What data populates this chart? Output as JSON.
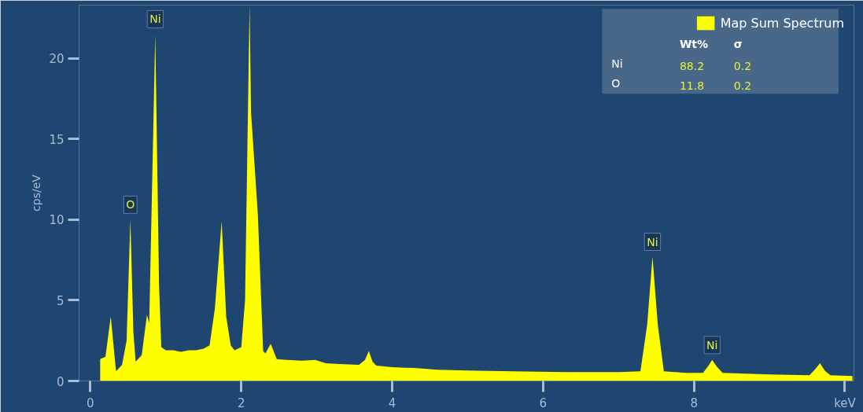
{
  "chart_data": {
    "type": "area",
    "ylabel": "cps/eV",
    "x": [
      0.13,
      0.2,
      0.27,
      0.34,
      0.42,
      0.48,
      0.53,
      0.57,
      0.6,
      0.68,
      0.75,
      0.78,
      0.86,
      0.91,
      0.94,
      1.0,
      1.1,
      1.2,
      1.3,
      1.4,
      1.5,
      1.58,
      1.65,
      1.74,
      1.8,
      1.86,
      1.91,
      2.0,
      2.05,
      2.11,
      2.13,
      2.22,
      2.29,
      2.32,
      2.39,
      2.47,
      2.6,
      2.8,
      2.98,
      3.12,
      3.3,
      3.56,
      3.64,
      3.69,
      3.74,
      3.79,
      4.0,
      4.3,
      4.6,
      5.0,
      5.6,
      6.3,
      7.0,
      7.29,
      7.38,
      7.45,
      7.52,
      7.6,
      7.9,
      8.12,
      8.2,
      8.24,
      8.3,
      8.38,
      9.0,
      9.53,
      9.6,
      9.67,
      9.74,
      9.81,
      10.1
    ],
    "series": [
      {
        "name": "Map Sum Spectrum",
        "color": "#ffff00",
        "values": [
          1.35,
          1.5,
          4.0,
          0.6,
          1.0,
          2.5,
          10.0,
          3.0,
          1.2,
          1.6,
          4.1,
          3.6,
          21.5,
          6.0,
          2.1,
          1.9,
          1.9,
          1.8,
          1.9,
          1.9,
          2.0,
          2.2,
          4.5,
          9.9,
          4.0,
          2.2,
          1.9,
          2.1,
          5.0,
          23.3,
          16.6,
          10.3,
          1.85,
          1.7,
          2.3,
          1.35,
          1.3,
          1.25,
          1.3,
          1.1,
          1.05,
          1.0,
          1.3,
          1.85,
          1.2,
          0.95,
          0.85,
          0.8,
          0.7,
          0.65,
          0.6,
          0.55,
          0.55,
          0.6,
          3.5,
          7.7,
          3.5,
          0.6,
          0.5,
          0.5,
          1.0,
          1.3,
          0.9,
          0.5,
          0.4,
          0.35,
          0.7,
          1.1,
          0.6,
          0.35,
          0.3
        ]
      }
    ],
    "xlim": [
      -0.15,
      10.12
    ],
    "ylim": [
      0,
      23.3
    ],
    "xticks": [
      0,
      2,
      4,
      6,
      8,
      {
        "value": 10,
        "label": "keV"
      }
    ],
    "yticks": [
      0,
      5,
      10,
      15,
      20
    ],
    "grid": false,
    "legend": "top right",
    "annotations": [
      {
        "text": "O",
        "x": 0.53,
        "y": 10.0
      },
      {
        "text": "Ni",
        "x": 0.86,
        "y": 21.5
      },
      {
        "text": "Ni",
        "x": 7.45,
        "y": 7.7
      },
      {
        "text": "Ni",
        "x": 8.24,
        "y": 1.3
      },
      "Wt%",
      "σ",
      "Ni",
      "88.2",
      "0.2",
      "O",
      "11.8",
      "0.2"
    ]
  }
}
